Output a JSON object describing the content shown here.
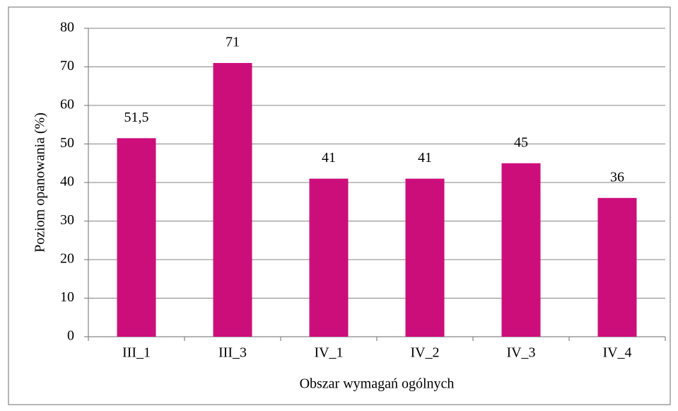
{
  "chart_data": {
    "type": "bar",
    "x_label": "Obszar wymagań ogólnych",
    "y_label": "Poziom opanowania (%)",
    "categories": [
      "III_1",
      "III_3",
      "IV_1",
      "IV_2",
      "IV_3",
      "IV_4"
    ],
    "values": [
      51.5,
      71,
      41,
      41,
      45,
      36
    ],
    "value_labels": [
      "51,5",
      "71",
      "41",
      "41",
      "45",
      "36"
    ],
    "color": "#cc0e7a",
    "ylim": [
      0,
      80
    ],
    "yticks": [
      0,
      10,
      20,
      30,
      40,
      50,
      60,
      70,
      80
    ],
    "grid": true
  }
}
